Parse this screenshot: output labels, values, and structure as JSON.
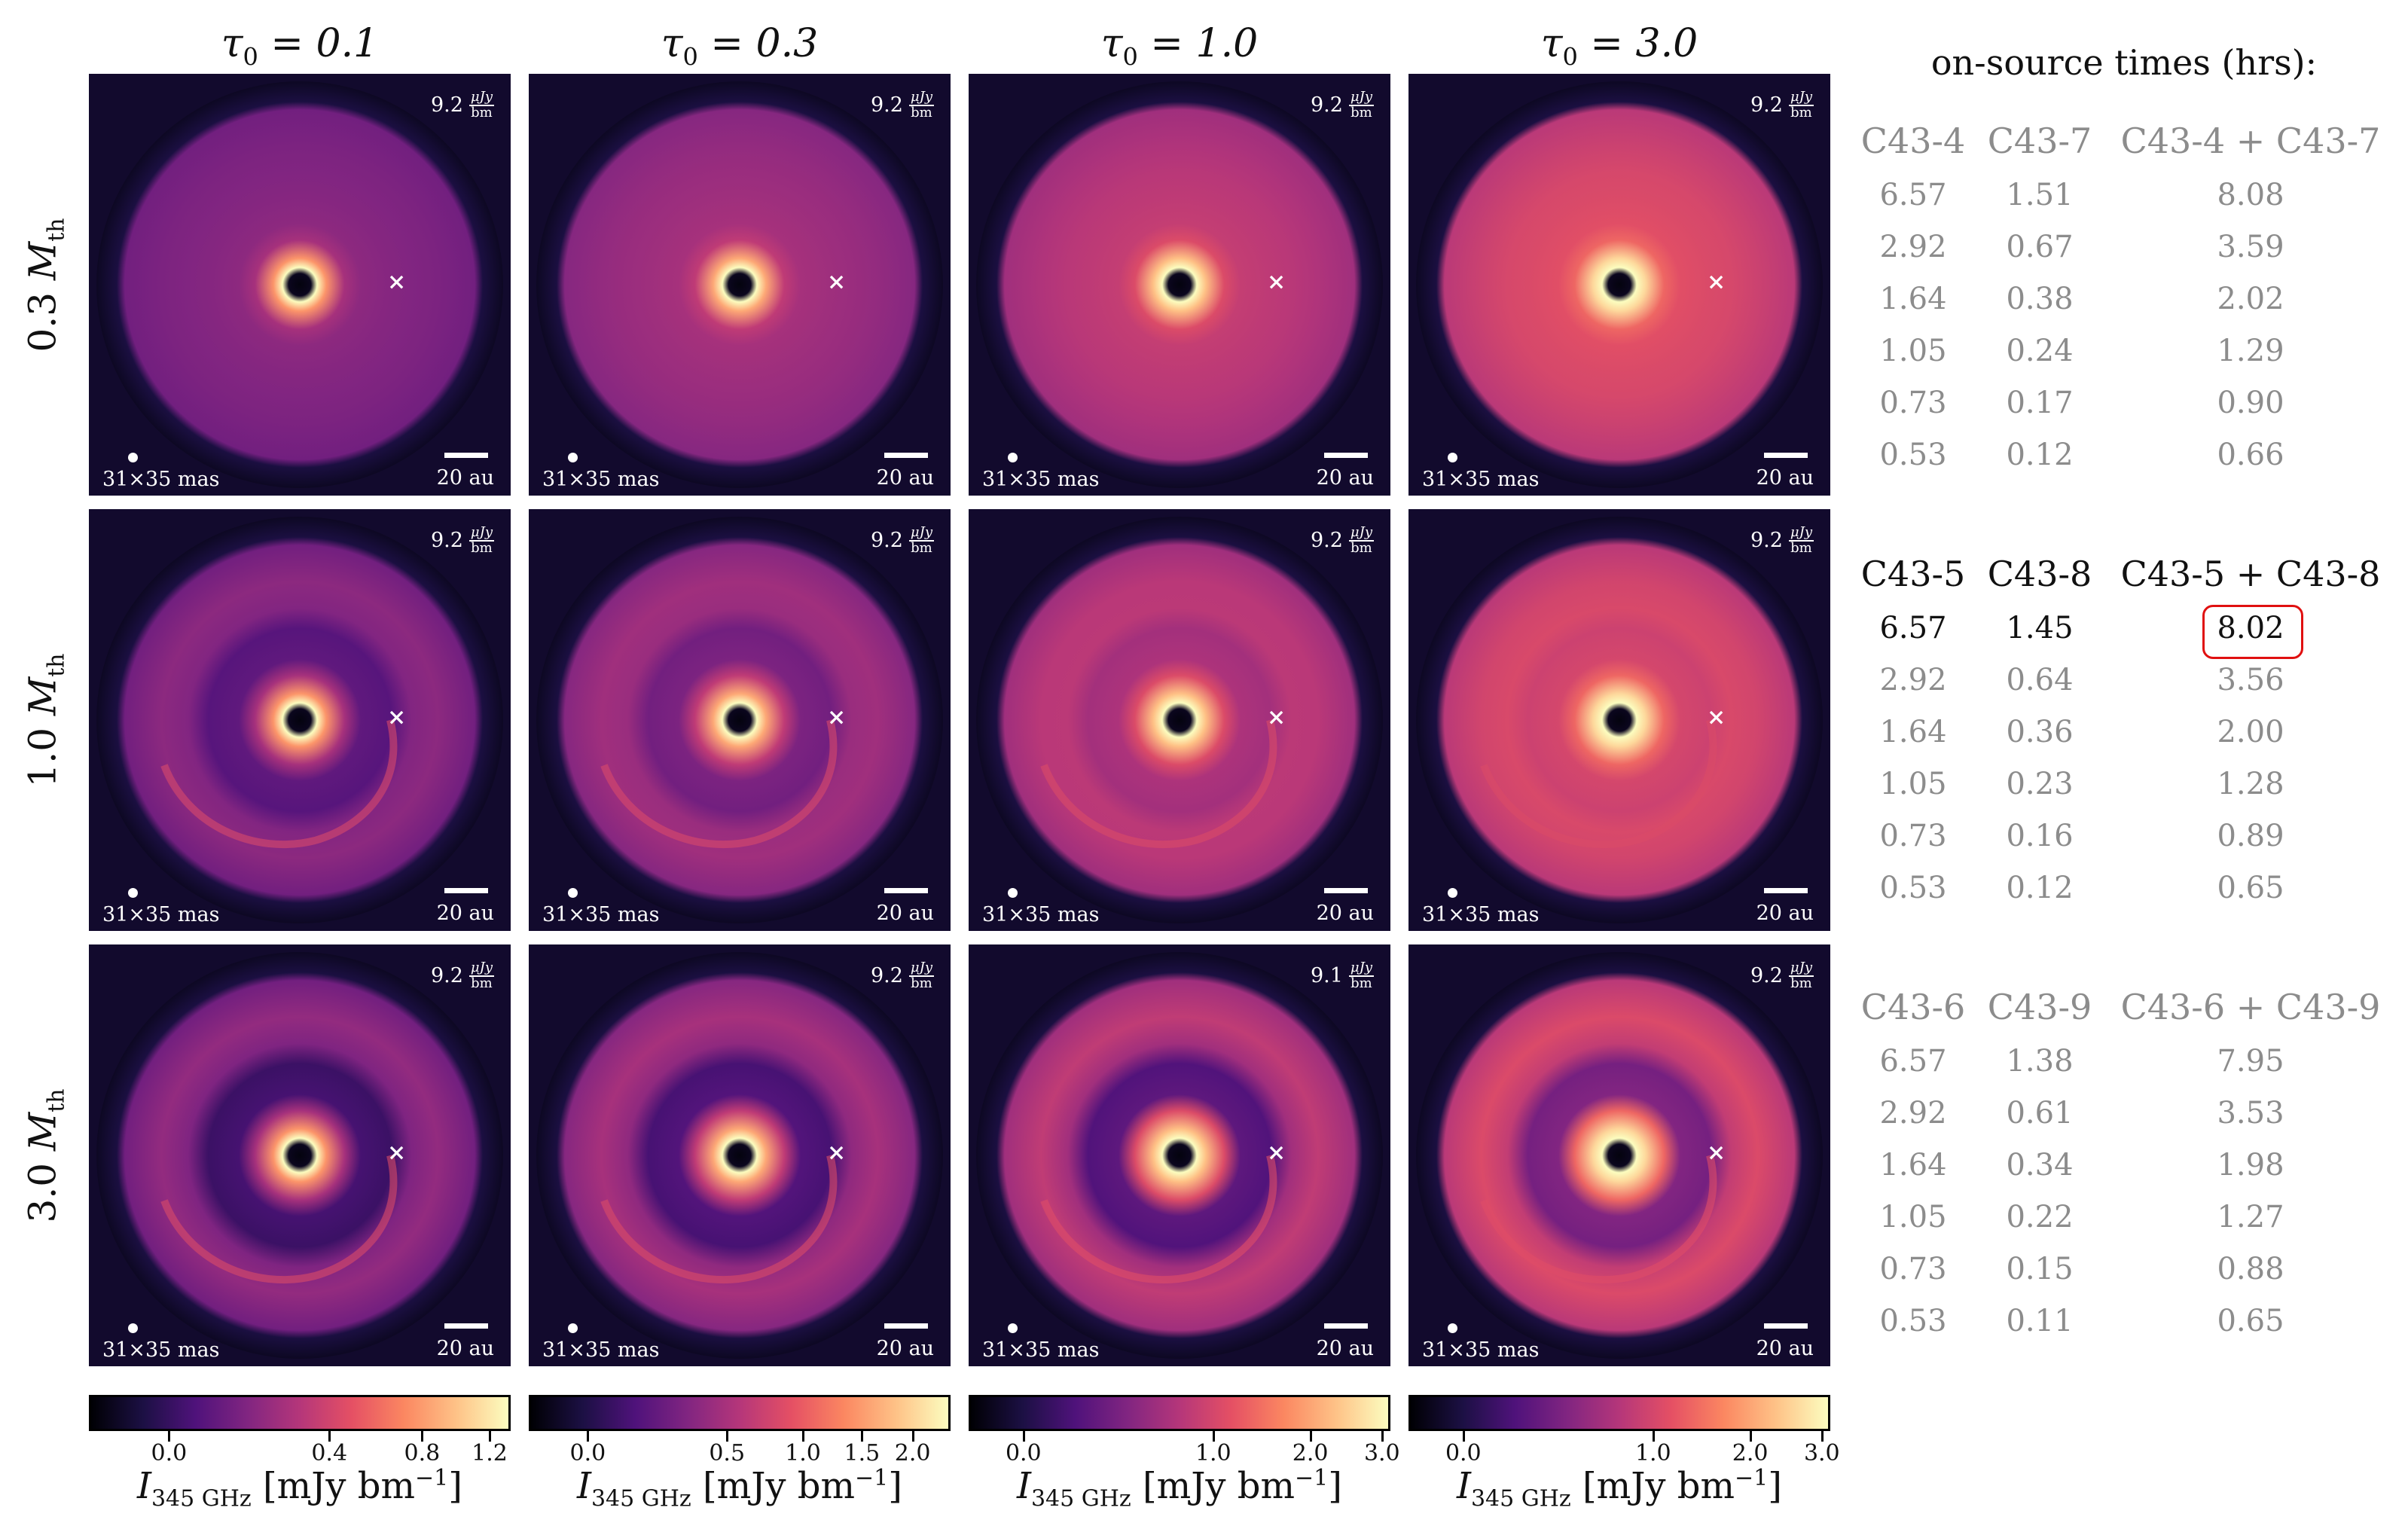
{
  "column_titles": [
    "τ0 = 0.1",
    "τ0 = 0.3",
    "τ0 = 1.0",
    "τ0 = 3.0"
  ],
  "row_titles": [
    "0.3 Mth",
    "1.0 Mth",
    "3.0 Mth"
  ],
  "panel_labels": {
    "beam": "31×35 mas",
    "scale_bar": "20 au",
    "noise_unit_numerator": "μJy",
    "noise_unit_denominator": "bm",
    "planet_marker": "×"
  },
  "noise_values": [
    [
      "9.2",
      "9.2",
      "9.2",
      "9.2"
    ],
    [
      "9.2",
      "9.2",
      "9.2",
      "9.2"
    ],
    [
      "9.2",
      "9.2",
      "9.1",
      "9.2"
    ]
  ],
  "panels": [
    [
      {
        "gap": 0.0,
        "ring": 0.0,
        "spiral": 0.0,
        "bright": 0.15
      },
      {
        "gap": 0.0,
        "ring": 0.0,
        "spiral": 0.0,
        "bright": 0.35
      },
      {
        "gap": 0.0,
        "ring": 0.0,
        "spiral": 0.0,
        "bright": 0.6
      },
      {
        "gap": 0.0,
        "ring": 0.0,
        "spiral": 0.0,
        "bright": 0.85
      }
    ],
    [
      {
        "gap": 0.5,
        "ring": 0.5,
        "spiral": 0.4,
        "bright": 0.15
      },
      {
        "gap": 0.4,
        "ring": 0.4,
        "spiral": 0.4,
        "bright": 0.35
      },
      {
        "gap": 0.2,
        "ring": 0.3,
        "spiral": 0.5,
        "bright": 0.6
      },
      {
        "gap": 0.1,
        "ring": 0.2,
        "spiral": 0.5,
        "bright": 0.85
      }
    ],
    [
      {
        "gap": 0.8,
        "ring": 0.7,
        "spiral": 0.5,
        "bright": 0.15
      },
      {
        "gap": 0.8,
        "ring": 0.6,
        "spiral": 0.5,
        "bright": 0.35
      },
      {
        "gap": 0.85,
        "ring": 0.5,
        "spiral": 0.6,
        "bright": 0.6
      },
      {
        "gap": 0.7,
        "ring": 0.5,
        "spiral": 0.6,
        "bright": 0.85
      }
    ]
  ],
  "colorbars": [
    {
      "colormap": "magma",
      "ticks": [
        "0.0",
        "0.4",
        "0.8",
        "1.2"
      ],
      "tick_fracs": [
        0.19,
        0.57,
        0.79,
        0.95
      ],
      "label": "I345 GHz [mJy bm−1]"
    },
    {
      "colormap": "magma",
      "ticks": [
        "0.0",
        "0.5",
        "1.0",
        "1.5",
        "2.0"
      ],
      "tick_fracs": [
        0.14,
        0.47,
        0.65,
        0.79,
        0.91
      ],
      "label": "I345 GHz [mJy bm−1]"
    },
    {
      "colormap": "magma",
      "ticks": [
        "0.0",
        "1.0",
        "2.0",
        "3.0"
      ],
      "tick_fracs": [
        0.13,
        0.58,
        0.81,
        0.98
      ],
      "label": "I345 GHz [mJy bm−1]"
    },
    {
      "colormap": "magma",
      "ticks": [
        "0.0",
        "1.0",
        "2.0",
        "3.0"
      ],
      "tick_fracs": [
        0.13,
        0.58,
        0.81,
        0.98
      ],
      "label": "I345 GHz [mJy bm−1]"
    }
  ],
  "table": {
    "title": "on-source times (hrs):",
    "groups": [
      {
        "headers": [
          "C43-4",
          "C43-7",
          "C43-4 + C43-7"
        ],
        "rows": [
          [
            "6.57",
            "1.51",
            "8.08"
          ],
          [
            "2.92",
            "0.67",
            "3.59"
          ],
          [
            "1.64",
            "0.38",
            "2.02"
          ],
          [
            "1.05",
            "0.24",
            "1.29"
          ],
          [
            "0.73",
            "0.17",
            "0.90"
          ],
          [
            "0.53",
            "0.12",
            "0.66"
          ]
        ],
        "highlighted": false
      },
      {
        "headers": [
          "C43-5",
          "C43-8",
          "C43-5 + C43-8"
        ],
        "rows": [
          [
            "6.57",
            "1.45",
            "8.02"
          ],
          [
            "2.92",
            "0.64",
            "3.56"
          ],
          [
            "1.64",
            "0.36",
            "2.00"
          ],
          [
            "1.05",
            "0.23",
            "1.28"
          ],
          [
            "0.73",
            "0.16",
            "0.89"
          ],
          [
            "0.53",
            "0.12",
            "0.65"
          ]
        ],
        "highlighted": true,
        "selected_row": 0,
        "circled_value": "8.02"
      },
      {
        "headers": [
          "C43-6",
          "C43-9",
          "C43-6 + C43-9"
        ],
        "rows": [
          [
            "6.57",
            "1.38",
            "7.95"
          ],
          [
            "2.92",
            "0.61",
            "3.53"
          ],
          [
            "1.64",
            "0.34",
            "1.98"
          ],
          [
            "1.05",
            "0.22",
            "1.27"
          ],
          [
            "0.73",
            "0.15",
            "0.88"
          ],
          [
            "0.53",
            "0.11",
            "0.65"
          ]
        ],
        "highlighted": false
      }
    ],
    "colors": {
      "muted": "#8c8c8c",
      "active": "#111111",
      "circle": "#e01010"
    }
  }
}
